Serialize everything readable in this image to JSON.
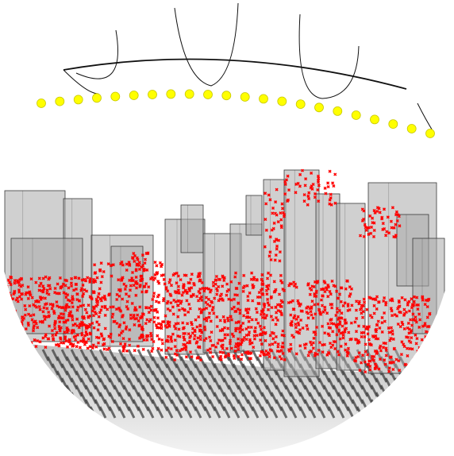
{
  "scene": {
    "kind": "fisheye-3d-point-cloud-render",
    "colors": {
      "background": "#ffffff",
      "building_fill": "#a9a9a9",
      "building_edge": "#3a3a3a",
      "marker": "#ff0000",
      "track_point": "#ffff00",
      "track_outline": "#c8c800",
      "curve": "#111111",
      "ground_light": "#f2f2f2",
      "ground_dark": "#9a9a9a",
      "shadow_marks": "#404040"
    },
    "elements": [
      "camera-trajectory-points",
      "rays-from-trajectory",
      "building-boxes",
      "red-cross-markers",
      "ground-shadow-marks",
      "fisheye-ground-disk"
    ]
  }
}
